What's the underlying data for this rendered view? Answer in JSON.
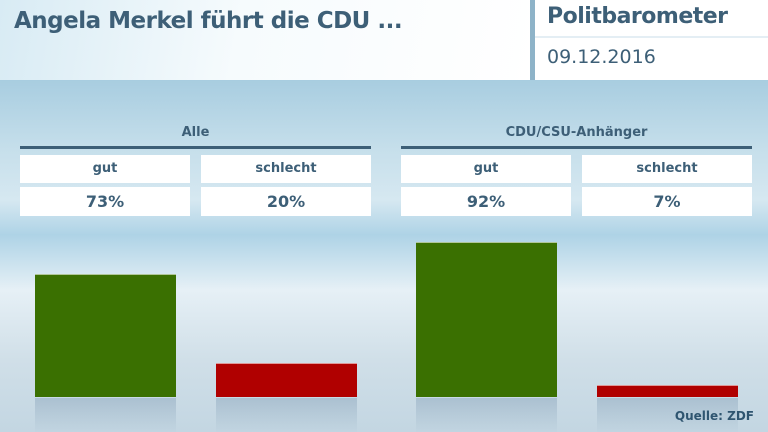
{
  "header": {
    "title": "Angela Merkel führt die CDU ...",
    "brand": "Politbarometer",
    "date": "09.12.2016"
  },
  "source": "Quelle: ZDF",
  "colors": {
    "gut": "#3a7001",
    "schlecht": "#b00000",
    "text": "#3d5f77"
  },
  "chart_data": {
    "type": "bar",
    "groups": [
      {
        "name": "Alle",
        "categories": [
          "gut",
          "schlecht"
        ],
        "values": [
          73,
          20
        ],
        "labels": [
          "73%",
          "20%"
        ]
      },
      {
        "name": "CDU/CSU-Anhänger",
        "categories": [
          "gut",
          "schlecht"
        ],
        "values": [
          92,
          7
        ],
        "labels": [
          "92%",
          "7%"
        ]
      }
    ],
    "ylim": [
      0,
      100
    ],
    "grid": false,
    "unit": "%"
  }
}
